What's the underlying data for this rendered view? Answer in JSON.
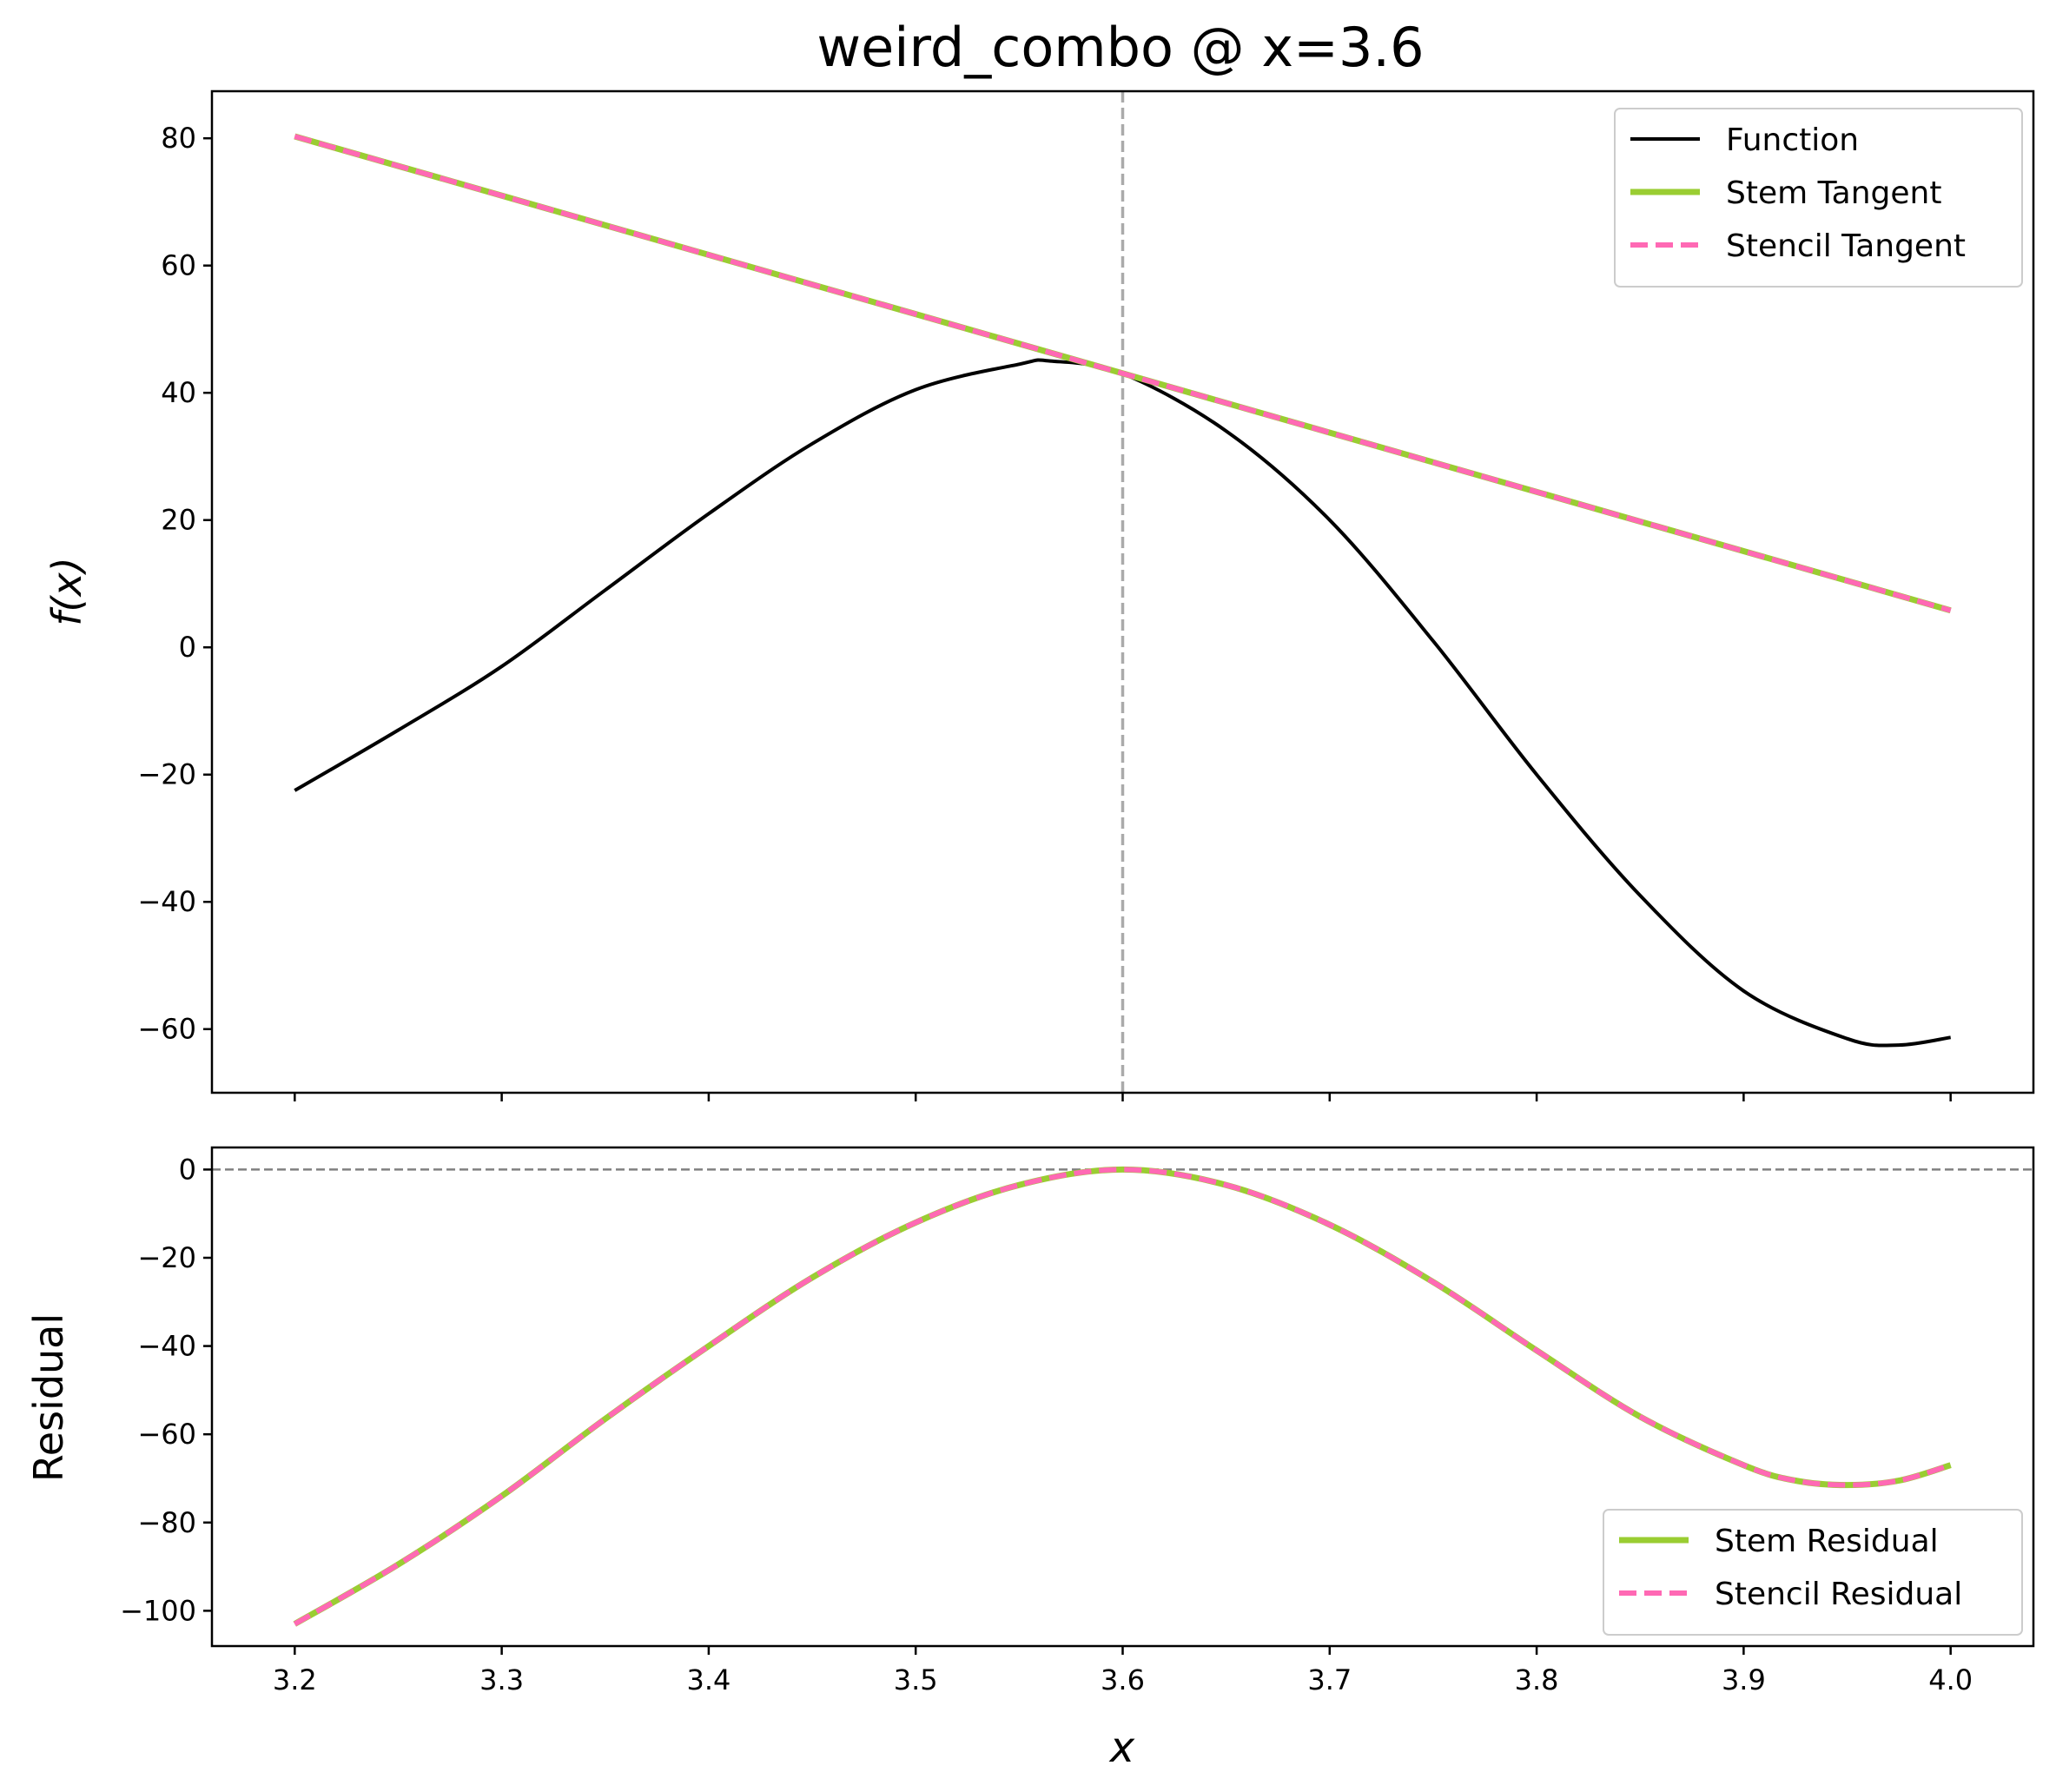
{
  "chart_data": [
    {
      "type": "line",
      "title": "weird_combo @ x=3.6",
      "xlabel": "",
      "ylabel": "f(x)",
      "xlim": [
        3.16,
        4.04
      ],
      "ylim": [
        -70,
        87.4
      ],
      "yticks": [
        -60,
        -40,
        -20,
        0,
        20,
        40,
        60,
        80
      ],
      "ytick_labels": [
        "−60",
        "−40",
        "−20",
        "0",
        "20",
        "40",
        "60",
        "80"
      ],
      "xticks": [
        3.2,
        3.3,
        3.4,
        3.5,
        3.6,
        3.7,
        3.8,
        3.9,
        4.0
      ],
      "xtick_labels_visible": false,
      "grid": false,
      "legend_position": "upper right",
      "vline": {
        "x": 3.6,
        "color": "#aaaaaa",
        "style": "dashed"
      },
      "series": [
        {
          "name": "Function",
          "color": "#000000",
          "style": "solid",
          "x": [
            3.2,
            3.25,
            3.3,
            3.35,
            3.4,
            3.45,
            3.5,
            3.55,
            3.565,
            3.6,
            3.65,
            3.7,
            3.75,
            3.8,
            3.85,
            3.9,
            3.95,
            3.975,
            4.0
          ],
          "y": [
            -22.5,
            -13,
            -3,
            9,
            21,
            32,
            40.5,
            44.5,
            45,
            43,
            34,
            20,
            1,
            -20,
            -39,
            -54,
            -61.5,
            -62.5,
            -61.3
          ]
        },
        {
          "name": "Stem Tangent",
          "color": "#9acd32",
          "style": "solid",
          "x": [
            3.2,
            4.0
          ],
          "y": [
            80.3,
            5.8
          ]
        },
        {
          "name": "Stencil Tangent",
          "color": "#ff69b4",
          "style": "dashed",
          "x": [
            3.2,
            4.0
          ],
          "y": [
            80.3,
            5.8
          ]
        }
      ]
    },
    {
      "type": "line",
      "title": "",
      "xlabel": "x",
      "ylabel": "Residual",
      "xlim": [
        3.16,
        4.04
      ],
      "ylim": [
        -108,
        5
      ],
      "yticks": [
        -100,
        -80,
        -60,
        -40,
        -20,
        0
      ],
      "ytick_labels": [
        "−100",
        "−80",
        "−60",
        "−40",
        "−20",
        "0"
      ],
      "xticks": [
        3.2,
        3.3,
        3.4,
        3.5,
        3.6,
        3.7,
        3.8,
        3.9,
        4.0
      ],
      "xtick_labels": [
        "3.2",
        "3.3",
        "3.4",
        "3.5",
        "3.6",
        "3.7",
        "3.8",
        "3.9",
        "4.0"
      ],
      "grid": false,
      "legend_position": "lower right",
      "hline": {
        "y": 0,
        "color": "#808080",
        "style": "dashed"
      },
      "series": [
        {
          "name": "Stem Residual",
          "color": "#9acd32",
          "style": "solid",
          "x": [
            3.2,
            3.25,
            3.3,
            3.35,
            3.4,
            3.45,
            3.5,
            3.55,
            3.6,
            3.65,
            3.7,
            3.75,
            3.8,
            3.85,
            3.9,
            3.925,
            3.95,
            3.975,
            4.0
          ],
          "y": [
            -103,
            -89.5,
            -74,
            -56.5,
            -40,
            -24.5,
            -12,
            -3.5,
            0,
            -3.5,
            -12.5,
            -25.5,
            -41,
            -56,
            -67,
            -70.5,
            -71.5,
            -70.5,
            -67
          ]
        },
        {
          "name": "Stencil Residual",
          "color": "#ff69b4",
          "style": "dashed",
          "x": [
            3.2,
            3.25,
            3.3,
            3.35,
            3.4,
            3.45,
            3.5,
            3.55,
            3.6,
            3.65,
            3.7,
            3.75,
            3.8,
            3.85,
            3.9,
            3.925,
            3.95,
            3.975,
            4.0
          ],
          "y": [
            -103,
            -89.5,
            -74,
            -56.5,
            -40,
            -24.5,
            -12,
            -3.5,
            0,
            -3.5,
            -12.5,
            -25.5,
            -41,
            -56,
            -67,
            -70.5,
            -71.5,
            -70.5,
            -67
          ]
        }
      ]
    }
  ]
}
